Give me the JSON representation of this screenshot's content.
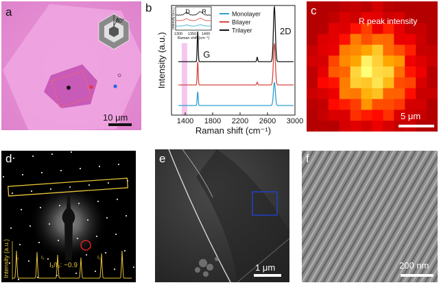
{
  "figure": {
    "panels": {
      "a": {
        "label": "a",
        "scalebar": "10 μm",
        "inset_angle": "30°"
      },
      "b": {
        "label": "b",
        "peak_labels": {
          "g": "G",
          "twod": "2D"
        }
      },
      "c": {
        "label": "c",
        "title": "R peak intensity",
        "scalebar": "5 μm"
      },
      "d": {
        "label": "d",
        "ylabel": "Intensity (a.u.)",
        "ratio": "I₁/I₂: ~0.9",
        "peak1": "I₁",
        "peak2": "I₂",
        "peak1b": "I₁"
      },
      "e": {
        "label": "e",
        "scalebar": "1 μm"
      },
      "f": {
        "label": "f",
        "scalebar": "200 nm"
      }
    }
  },
  "chart_data": {
    "type": "line",
    "xlabel": "Raman shift (cm⁻¹)",
    "ylabel": "Intensity (a.u.)",
    "xlim": [
      1200,
      3000
    ],
    "xticks": [
      1400,
      1800,
      2200,
      2600,
      3000
    ],
    "legend_placement": "top-right",
    "colors": {
      "Monolayer": "#2a9fd0",
      "Bilayer": "#d9463f",
      "Trilayer": "#111111"
    },
    "series": [
      {
        "name": "Trilayer",
        "peaks": [
          [
            1582,
            0.55
          ],
          [
            2450,
            0.08
          ],
          [
            2700,
            1.0
          ]
        ]
      },
      {
        "name": "Bilayer",
        "peaks": [
          [
            1582,
            0.42
          ],
          [
            2450,
            0.05
          ],
          [
            2700,
            0.75
          ]
        ]
      },
      {
        "name": "Monolayer",
        "peaks": [
          [
            1582,
            0.25
          ],
          [
            2700,
            0.42
          ]
        ]
      }
    ],
    "inset": {
      "xlabel": "Raman shift (cm⁻¹)",
      "ylabel": "Intensity (a.u.)",
      "xticks": [
        1300,
        1350,
        1400
      ],
      "labels": [
        "D",
        "R"
      ]
    }
  }
}
